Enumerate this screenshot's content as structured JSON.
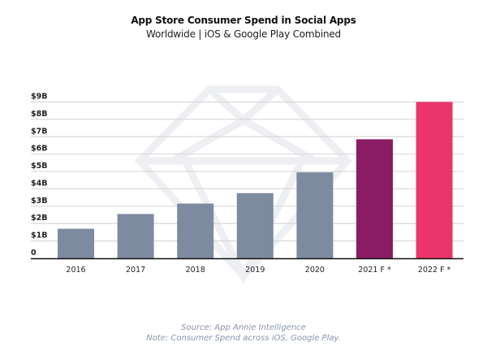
{
  "chart_data": {
    "type": "bar",
    "title": "App Store Consumer Spend in Social Apps",
    "subtitle": "Worldwide | iOS & Google Play Combined",
    "xlabel": "",
    "ylabel": "",
    "categories": [
      "2016",
      "2017",
      "2018",
      "2019",
      "2020",
      "2021 F *",
      "2022 F *"
    ],
    "values": [
      1.7,
      2.55,
      3.15,
      3.75,
      4.95,
      6.85,
      9.0
    ],
    "unit": "billion USD",
    "bar_colors": [
      "#7e8aa0",
      "#7e8aa0",
      "#7e8aa0",
      "#7e8aa0",
      "#7e8aa0",
      "#891c63",
      "#ea356b"
    ],
    "ylim": [
      0,
      9
    ],
    "y_ticks": [
      0,
      1,
      2,
      3,
      4,
      5,
      6,
      7,
      8,
      9
    ],
    "y_tick_labels": [
      "0",
      "$1B",
      "$2B",
      "$3B",
      "$4B",
      "$5B",
      "$6B",
      "$7B",
      "$8B",
      "$9B"
    ],
    "grid": true,
    "legend": "none"
  },
  "footnotes": {
    "source": "Source: App Annie Intelligence",
    "note": "Note: Consumer Spend across iOS, Google Play."
  }
}
